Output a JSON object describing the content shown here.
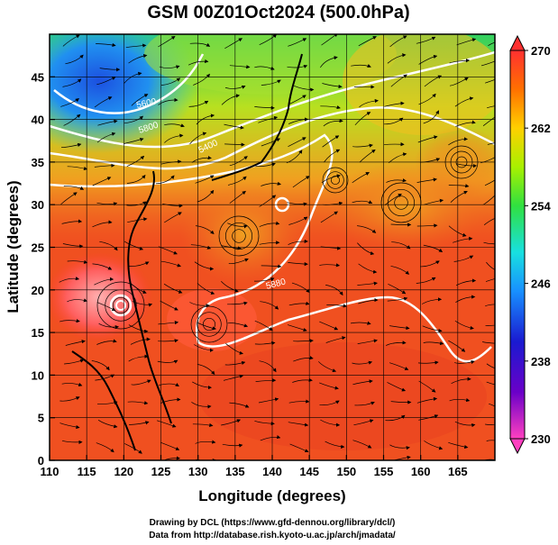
{
  "chart_data": {
    "type": "heatmap",
    "title": "GSM 00Z01Oct2024 (500.0hPa)",
    "xlabel": "Longitude (degrees)",
    "ylabel": "Latitude  (degrees)",
    "xlim": [
      110,
      170
    ],
    "ylim": [
      0,
      50
    ],
    "x_ticks": [
      110,
      115,
      120,
      125,
      130,
      135,
      140,
      145,
      150,
      155,
      160,
      165
    ],
    "y_ticks": [
      0,
      5,
      10,
      15,
      20,
      25,
      30,
      35,
      40,
      45
    ],
    "grid": true,
    "colorbar": {
      "min": 230,
      "max": 270,
      "tick_values": [
        270,
        262,
        254,
        246,
        238,
        230
      ],
      "tick_labels": [
        "270",
        "262",
        "254",
        "246",
        "238",
        "230"
      ]
    },
    "contours": [
      {
        "label": "5600",
        "color": "#ffffff"
      },
      {
        "label": "5800",
        "color": "#ffffff"
      },
      {
        "label": "5400",
        "color": "#ffffff"
      },
      {
        "label": "5880",
        "color": "#ffffff"
      }
    ],
    "credits": [
      "Drawing by DCL (https://www.gfd-dennou.org/library/dcl/)",
      "Data from http://database.rish.kyoto-u.ac.jp/arch/jmadata/"
    ]
  }
}
